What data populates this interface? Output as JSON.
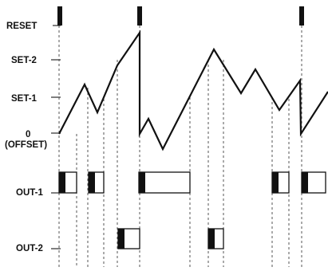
{
  "labels": {
    "reset": "RESET",
    "set2": "SET-2",
    "set1": "SET-1",
    "zero": "0",
    "offset": "(OFFSET)",
    "out1": "OUT-1",
    "out2": "OUT-2"
  }
}
